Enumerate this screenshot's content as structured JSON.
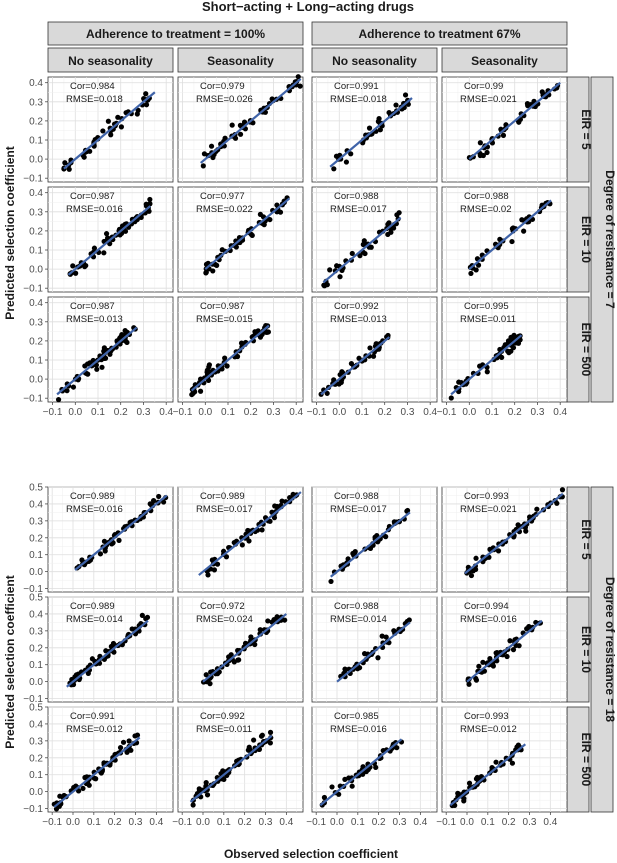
{
  "figure": {
    "title": "Short−acting + Long−acting drugs",
    "xlabel": "Observed selection coefficient",
    "ylabel": "Predicted selection coefficient",
    "colors": {
      "points": "#000000",
      "fit_line": "#3f63a8",
      "strip_bg": "#d9d9d9",
      "strip_border": "#333333",
      "grid": "#ebebeb"
    }
  },
  "chart_data": [
    {
      "type": "scatter",
      "title": "Short−acting + Long−acting drugs",
      "xlabel": "",
      "ylabel": "Predicted selection coefficient",
      "column_groups": [
        "Adherence to treatment = 100%",
        "Adherence to treatment 67%"
      ],
      "columns": [
        "No seasonality",
        "Seasonality",
        "No seasonality",
        "Seasonality"
      ],
      "rows": [
        "EIR = 5",
        "EIR = 10",
        "EIR = 500"
      ],
      "row_group": "Degree of resistance = 7",
      "xlim": [
        -0.12,
        0.43
      ],
      "ylim": [
        -0.12,
        0.43
      ],
      "x_ticks": [
        "−0.1",
        "0.0",
        "0.1",
        "0.2",
        "0.3",
        "0.4"
      ],
      "y_ticks": [
        "−0.1",
        "0.0",
        "0.1",
        "0.2",
        "0.3",
        "0.4"
      ],
      "grid": true,
      "fit_line": "y = x (linear fit)",
      "panels": [
        {
          "row": 0,
          "col": 0,
          "cor": "Cor=0.984",
          "rmse": "RMSE=0.018",
          "x_range": [
            -0.05,
            0.35
          ],
          "n": 45
        },
        {
          "row": 0,
          "col": 1,
          "cor": "Cor=0.979",
          "rmse": "RMSE=0.026",
          "x_range": [
            -0.02,
            0.42
          ],
          "n": 50
        },
        {
          "row": 0,
          "col": 2,
          "cor": "Cor=0.991",
          "rmse": "RMSE=0.018",
          "x_range": [
            -0.04,
            0.32
          ],
          "n": 40
        },
        {
          "row": 0,
          "col": 3,
          "cor": "Cor=0.99",
          "rmse": "RMSE=0.021",
          "x_range": [
            0.0,
            0.4
          ],
          "n": 45
        },
        {
          "row": 1,
          "col": 0,
          "cor": "Cor=0.987",
          "rmse": "RMSE=0.016",
          "x_range": [
            -0.03,
            0.33
          ],
          "n": 55
        },
        {
          "row": 1,
          "col": 1,
          "cor": "Cor=0.977",
          "rmse": "RMSE=0.022",
          "x_range": [
            0.0,
            0.37
          ],
          "n": 50
        },
        {
          "row": 1,
          "col": 2,
          "cor": "Cor=0.988",
          "rmse": "RMSE=0.017",
          "x_range": [
            -0.07,
            0.27
          ],
          "n": 40
        },
        {
          "row": 1,
          "col": 3,
          "cor": "Cor=0.988",
          "rmse": "RMSE=0.02",
          "x_range": [
            0.0,
            0.36
          ],
          "n": 40
        },
        {
          "row": 2,
          "col": 0,
          "cor": "Cor=0.987",
          "rmse": "RMSE=0.013",
          "x_range": [
            -0.08,
            0.27
          ],
          "n": 60
        },
        {
          "row": 2,
          "col": 1,
          "cor": "Cor=0.987",
          "rmse": "RMSE=0.015",
          "x_range": [
            -0.06,
            0.28
          ],
          "n": 60
        },
        {
          "row": 2,
          "col": 2,
          "cor": "Cor=0.992",
          "rmse": "RMSE=0.013",
          "x_range": [
            -0.08,
            0.22
          ],
          "n": 45
        },
        {
          "row": 2,
          "col": 3,
          "cor": "Cor=0.995",
          "rmse": "RMSE=0.011",
          "x_range": [
            -0.08,
            0.23
          ],
          "n": 50
        }
      ]
    },
    {
      "type": "scatter",
      "title": "",
      "xlabel": "Observed selection coefficient",
      "ylabel": "Predicted selection coefficient",
      "columns": [
        "No seasonality",
        "Seasonality",
        "No seasonality",
        "Seasonality"
      ],
      "rows": [
        "EIR = 5",
        "EIR = 10",
        "EIR = 500"
      ],
      "row_group": "Degree of resistance = 18",
      "xlim": [
        -0.12,
        0.48
      ],
      "ylim": [
        -0.12,
        0.5
      ],
      "x_ticks": [
        "−0.1",
        "0.0",
        "0.1",
        "0.2",
        "0.3",
        "0.4"
      ],
      "y_ticks": [
        "−0.1",
        "0.0",
        "0.1",
        "0.2",
        "0.3",
        "0.4",
        "0.5"
      ],
      "grid": true,
      "fit_line": "y = x (linear fit)",
      "panels": [
        {
          "row": 0,
          "col": 0,
          "cor": "Cor=0.989",
          "rmse": "RMSE=0.016",
          "x_range": [
            0.01,
            0.45
          ],
          "n": 55
        },
        {
          "row": 0,
          "col": 1,
          "cor": "Cor=0.989",
          "rmse": "RMSE=0.017",
          "x_range": [
            -0.02,
            0.47
          ],
          "n": 55
        },
        {
          "row": 0,
          "col": 2,
          "cor": "Cor=0.988",
          "rmse": "RMSE=0.017",
          "x_range": [
            -0.03,
            0.35
          ],
          "n": 40
        },
        {
          "row": 0,
          "col": 3,
          "cor": "Cor=0.993",
          "rmse": "RMSE=0.021",
          "x_range": [
            -0.01,
            0.46
          ],
          "n": 55
        },
        {
          "row": 1,
          "col": 0,
          "cor": "Cor=0.989",
          "rmse": "RMSE=0.014",
          "x_range": [
            -0.03,
            0.36
          ],
          "n": 60
        },
        {
          "row": 1,
          "col": 1,
          "cor": "Cor=0.972",
          "rmse": "RMSE=0.024",
          "x_range": [
            0.0,
            0.4
          ],
          "n": 60
        },
        {
          "row": 1,
          "col": 2,
          "cor": "Cor=0.988",
          "rmse": "RMSE=0.014",
          "x_range": [
            0.0,
            0.35
          ],
          "n": 40
        },
        {
          "row": 1,
          "col": 3,
          "cor": "Cor=0.994",
          "rmse": "RMSE=0.016",
          "x_range": [
            0.0,
            0.36
          ],
          "n": 50
        },
        {
          "row": 2,
          "col": 0,
          "cor": "Cor=0.991",
          "rmse": "RMSE=0.012",
          "x_range": [
            -0.09,
            0.32
          ],
          "n": 65
        },
        {
          "row": 2,
          "col": 1,
          "cor": "Cor=0.992",
          "rmse": "RMSE=0.011",
          "x_range": [
            -0.06,
            0.33
          ],
          "n": 65
        },
        {
          "row": 2,
          "col": 2,
          "cor": "Cor=0.985",
          "rmse": "RMSE=0.016",
          "x_range": [
            -0.08,
            0.31
          ],
          "n": 45
        },
        {
          "row": 2,
          "col": 3,
          "cor": "Cor=0.993",
          "rmse": "RMSE=0.012",
          "x_range": [
            -0.08,
            0.28
          ],
          "n": 50
        }
      ]
    }
  ]
}
